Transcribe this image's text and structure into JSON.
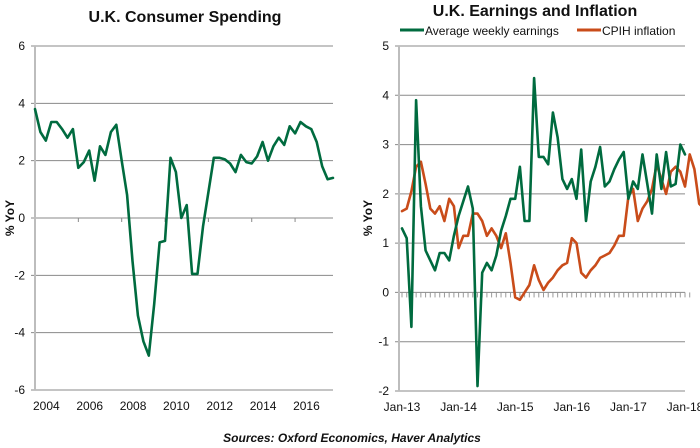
{
  "chart_data": [
    {
      "type": "line",
      "title": "U.K. Consumer Spending",
      "xlabel": "",
      "ylabel": "% YoY",
      "ylim": [
        -6,
        6
      ],
      "yticks": [
        "6",
        "4",
        "2",
        "0",
        "-2",
        "-4",
        "-6"
      ],
      "ytick_values": [
        6,
        4,
        2,
        0,
        -2,
        -4,
        -6
      ],
      "xtick_labels": [
        "2004",
        "2006",
        "2008",
        "2010",
        "2012",
        "2014",
        "2016"
      ],
      "xtick_values": [
        2004,
        2006,
        2008,
        2010,
        2012,
        2014,
        2016
      ],
      "xlim": [
        2004,
        2017.75
      ],
      "grid": true,
      "legend": "none",
      "series": [
        {
          "name": "Consumer spending",
          "color": "#006B3F",
          "x_start": 2004,
          "x_step": 0.25,
          "values": [
            3.8,
            3.0,
            2.7,
            3.35,
            3.35,
            3.1,
            2.8,
            3.1,
            1.75,
            1.95,
            2.35,
            1.3,
            2.5,
            2.2,
            3.0,
            3.25,
            2.0,
            0.8,
            -1.5,
            -3.4,
            -4.3,
            -4.8,
            -3.0,
            -0.85,
            -0.8,
            2.1,
            1.6,
            0.0,
            0.45,
            -1.95,
            -1.95,
            -0.3,
            0.9,
            2.1,
            2.1,
            2.05,
            1.9,
            1.6,
            2.2,
            1.95,
            1.9,
            2.15,
            2.65,
            2.0,
            2.5,
            2.8,
            2.55,
            3.2,
            2.95,
            3.35,
            3.2,
            3.1,
            2.65,
            1.8,
            1.35,
            1.4
          ]
        }
      ]
    },
    {
      "type": "line",
      "title": "U.K. Earnings and Inflation",
      "xlabel": "",
      "ylabel": "% YoY",
      "ylim": [
        -2,
        5
      ],
      "yticks": [
        "5",
        "4",
        "3",
        "2",
        "1",
        "0",
        "-1",
        "-2"
      ],
      "ytick_values": [
        5,
        4,
        3,
        2,
        1,
        0,
        -1,
        -2
      ],
      "xtick_labels": [
        "Jan-13",
        "Jan-14",
        "Jan-15",
        "Jan-16",
        "Jan-17",
        "Jan-18"
      ],
      "xtick_values": [
        0,
        12,
        24,
        36,
        48,
        60
      ],
      "xlim": [
        0,
        60
      ],
      "grid": true,
      "legend": "top",
      "series": [
        {
          "name": "Average weekly earnings",
          "color": "#006B3F",
          "x_start": 0,
          "x_step": 1,
          "values": [
            1.3,
            1.1,
            -0.7,
            3.9,
            1.75,
            0.85,
            0.65,
            0.45,
            0.8,
            0.8,
            0.65,
            1.15,
            1.55,
            1.85,
            2.15,
            1.7,
            -1.9,
            0.4,
            0.6,
            0.45,
            0.75,
            1.25,
            1.55,
            1.9,
            1.9,
            2.55,
            1.45,
            1.45,
            4.35,
            2.75,
            2.75,
            2.6,
            3.65,
            3.15,
            2.3,
            2.1,
            2.3,
            1.9,
            2.9,
            1.45,
            2.25,
            2.55,
            2.95,
            2.15,
            2.25,
            2.5,
            2.7,
            2.85,
            1.9,
            2.25,
            2.1,
            2.8,
            2.2,
            1.6,
            2.8,
            2.1,
            2.85,
            2.15,
            2.2,
            3.0,
            2.8
          ]
        },
        {
          "name": "CPIH inflation",
          "color": "#C94C1A",
          "x_start": 0,
          "x_step": 1,
          "values": [
            1.65,
            1.7,
            2.05,
            2.55,
            2.65,
            2.2,
            1.7,
            1.6,
            1.75,
            1.45,
            1.9,
            1.75,
            0.9,
            1.15,
            1.15,
            1.6,
            1.6,
            1.45,
            1.15,
            1.3,
            1.15,
            0.9,
            1.2,
            0.6,
            -0.1,
            -0.15,
            0.0,
            0.15,
            0.55,
            0.25,
            0.05,
            0.2,
            0.3,
            0.45,
            0.55,
            0.6,
            1.1,
            1.0,
            0.4,
            0.3,
            0.45,
            0.55,
            0.7,
            0.75,
            0.8,
            0.95,
            1.15,
            1.15,
            1.95,
            2.1,
            1.45,
            1.7,
            1.85,
            2.1,
            2.6,
            2.3,
            2.0,
            2.45,
            2.55,
            2.45,
            2.15,
            2.8,
            2.5,
            1.8,
            1.7
          ]
        }
      ]
    }
  ],
  "source_note": "Sources:  Oxford Economics, Haver Analytics"
}
